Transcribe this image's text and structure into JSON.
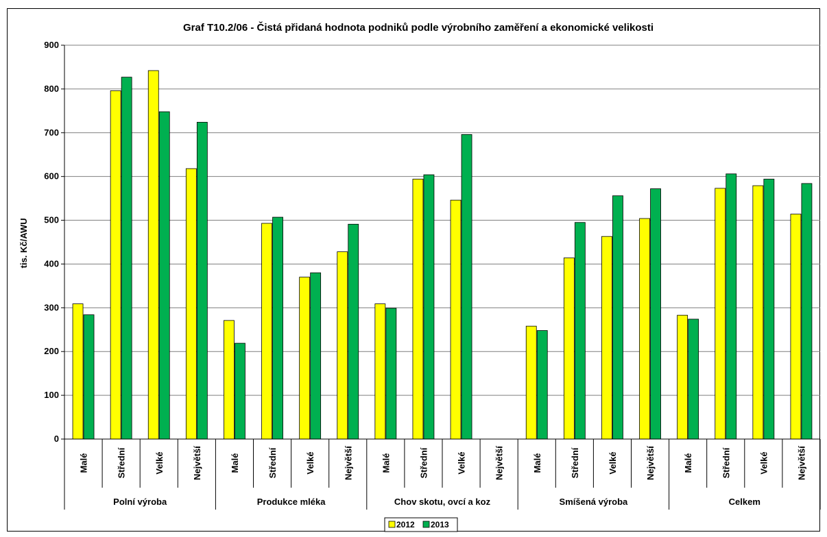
{
  "chart_data": {
    "type": "bar",
    "title": "Graf T10.2/06 - Čistá přidaná hodnota podniků podle výrobního zaměření a ekonomické velikosti",
    "ylabel": "tis. Kč/AWU",
    "xlabel": "",
    "ylim": [
      0,
      900
    ],
    "yticks": [
      0,
      100,
      200,
      300,
      400,
      500,
      600,
      700,
      800,
      900
    ],
    "grid": true,
    "legend_position": "bottom",
    "groups": [
      "Polní výroba",
      "Produkce mléka",
      "Chov skotu, ovcí a koz",
      "Smíšená výroba",
      "Celkem"
    ],
    "subcategories": [
      "Malé",
      "Střední",
      "Velké",
      "Největší"
    ],
    "categories": [
      "Malé",
      "Střední",
      "Velké",
      "Největší",
      "Malé",
      "Střední",
      "Velké",
      "Největší",
      "Malé",
      "Střední",
      "Velké",
      "Největší",
      "Malé",
      "Střední",
      "Velké",
      "Největší",
      "Malé",
      "Střední",
      "Velké",
      "Největší"
    ],
    "series": [
      {
        "name": "2012",
        "color": "#ffff00",
        "values": [
          309,
          796,
          842,
          618,
          271,
          493,
          370,
          428,
          309,
          594,
          546,
          null,
          258,
          414,
          463,
          504,
          283,
          573,
          579,
          514
        ]
      },
      {
        "name": "2013",
        "color": "#00b050",
        "values": [
          284,
          827,
          748,
          724,
          219,
          507,
          380,
          491,
          299,
          604,
          696,
          null,
          248,
          495,
          556,
          572,
          274,
          606,
          594,
          584
        ]
      }
    ]
  }
}
